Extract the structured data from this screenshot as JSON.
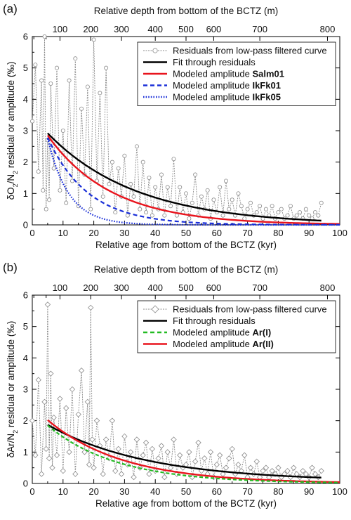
{
  "chart_data": [
    {
      "panel_label": "(a)",
      "type": "line",
      "xlabel": "Relative age from bottom of the BCTZ (kyr)",
      "xlim": [
        0,
        100
      ],
      "xticks": [
        "0",
        "10",
        "20",
        "30",
        "40",
        "50",
        "60",
        "70",
        "80",
        "90",
        "100"
      ],
      "top_axis_label": "Relative depth from bottom of the BCTZ  (m)",
      "top_ticks": [
        {
          "label": "100",
          "x": 9
        },
        {
          "label": "200",
          "x": 19
        },
        {
          "label": "300",
          "x": 29
        },
        {
          "label": "400",
          "x": 40
        },
        {
          "label": "500",
          "x": 50
        },
        {
          "label": "600",
          "x": 59
        },
        {
          "label": "700",
          "x": 74
        },
        {
          "label": "800",
          "x": 96
        }
      ],
      "ylabel": "δO2/N2 residual or amplitude (‰)",
      "ylim": [
        0,
        6
      ],
      "yticks": [
        "0",
        "1",
        "2",
        "3",
        "4",
        "5",
        "6"
      ],
      "legend": {
        "placement": "top-right",
        "entries": [
          {
            "label": "Residuals from low-pass filtered curve",
            "bold": "",
            "style": "residual",
            "color": "#888888"
          },
          {
            "label": "Fit through residuals",
            "bold": "",
            "style": "solid",
            "color": "#000000"
          },
          {
            "label": "Modeled amplitude ",
            "bold": "Salm01",
            "style": "solid",
            "color": "#e8141d"
          },
          {
            "label": "Modeled amplitude ",
            "bold": "IkFk01",
            "style": "dashed",
            "color": "#1a2fd8"
          },
          {
            "label": "Modeled amplitude ",
            "bold": "IkFk05",
            "style": "dotted",
            "color": "#1a2fd8"
          }
        ]
      },
      "residual_marker": "circle",
      "residuals": {
        "x": [
          0,
          1,
          2,
          3,
          3.5,
          4,
          4.5,
          5,
          5.5,
          6,
          7,
          8,
          9,
          10,
          11,
          12,
          13,
          14,
          15,
          16,
          17,
          18,
          19,
          20,
          21,
          22,
          23,
          24,
          25,
          26,
          27,
          28,
          29,
          30,
          31,
          32,
          33,
          34,
          35,
          36,
          37,
          38,
          39,
          40,
          41,
          42,
          43,
          44,
          45,
          46,
          47,
          48,
          49,
          50,
          51,
          52,
          53,
          54,
          55,
          56,
          57,
          58,
          59,
          60,
          61,
          62,
          63,
          64,
          65,
          66,
          67,
          68,
          69,
          70,
          71,
          72,
          73,
          74,
          75,
          76,
          77,
          78,
          79,
          80,
          81,
          82,
          83,
          84,
          85,
          86,
          87,
          88,
          89,
          90,
          91,
          92,
          93,
          94
        ],
        "y": [
          3.3,
          5.1,
          1.7,
          4.6,
          1.1,
          6.0,
          0.5,
          2.7,
          0.8,
          4.5,
          1.8,
          5.0,
          1.1,
          3.0,
          0.7,
          4.6,
          1.4,
          5.3,
          0.6,
          3.7,
          1.6,
          4.4,
          0.5,
          5.9,
          1.4,
          4.2,
          0.9,
          5.0,
          1.3,
          2.0,
          0.4,
          1.8,
          0.9,
          2.2,
          0.3,
          1.3,
          0.9,
          2.5,
          0.5,
          2.0,
          0.4,
          1.5,
          0.3,
          1.2,
          0.5,
          1.6,
          0.3,
          1.2,
          0.6,
          2.1,
          0.3,
          1.2,
          0.4,
          1.0,
          0.2,
          0.7,
          1.6,
          0.3,
          0.9,
          0.5,
          1.1,
          0.2,
          0.8,
          0.4,
          1.2,
          0.3,
          1.4,
          0.5,
          0.8,
          0.3,
          1.0,
          0.6,
          0.2,
          0.5,
          0.7,
          0.3,
          0.4,
          0.6,
          0.2,
          0.5,
          0.3,
          0.6,
          0.2,
          0.4,
          0.5,
          0.2,
          0.3,
          0.6,
          0.2,
          0.3,
          0.4,
          0.2,
          0.5,
          0.3,
          0.2,
          0.4,
          0.3,
          0.7
        ]
      },
      "lines": [
        {
          "name": "Fit through residuals",
          "color": "#000000",
          "dash": "",
          "width": 2.4,
          "x0": 5,
          "x1": 94,
          "A": 2.92,
          "tau": 28.9,
          "floor": 0
        },
        {
          "name": "Salm01",
          "color": "#e8141d",
          "dash": "",
          "width": 2.4,
          "x0": 5,
          "x1": 100,
          "A": 2.85,
          "tau": 20.8,
          "floor": 0
        },
        {
          "name": "IkFk01",
          "color": "#1a2fd8",
          "dash": "6,4",
          "width": 2.2,
          "x0": 5,
          "x1": 100,
          "A": 2.78,
          "tau": 13.1,
          "floor": 0
        },
        {
          "name": "IkFk05",
          "color": "#1a2fd8",
          "dash": "1.6,2",
          "width": 2.2,
          "x0": 5,
          "x1": 100,
          "A": 2.75,
          "tau": 6.8,
          "floor": 0
        }
      ]
    },
    {
      "panel_label": "(b)",
      "type": "line",
      "xlabel": "Relative age from bottom of the BCTZ (kyr)",
      "xlim": [
        0,
        100
      ],
      "xticks": [
        "0",
        "10",
        "20",
        "30",
        "40",
        "50",
        "60",
        "70",
        "80",
        "90",
        "100"
      ],
      "top_axis_label": "Relative depth from bottom of the BCTZ  (m)",
      "top_ticks": [
        {
          "label": "100",
          "x": 9
        },
        {
          "label": "200",
          "x": 19
        },
        {
          "label": "300",
          "x": 29
        },
        {
          "label": "400",
          "x": 40
        },
        {
          "label": "500",
          "x": 50
        },
        {
          "label": "600",
          "x": 59
        },
        {
          "label": "700",
          "x": 74
        },
        {
          "label": "800",
          "x": 96
        }
      ],
      "ylabel": "δAr/N2 residual or amplitude (‰)",
      "ylim": [
        0,
        6
      ],
      "yticks": [
        "0",
        "1",
        "2",
        "3",
        "4",
        "5",
        "6"
      ],
      "legend": {
        "placement": "top-right",
        "entries": [
          {
            "label": "Residuals from low-pass filtered curve",
            "bold": "",
            "style": "residual",
            "color": "#888888"
          },
          {
            "label": "Fit through residuals",
            "bold": "",
            "style": "solid",
            "color": "#000000"
          },
          {
            "label": "Modeled amplitude ",
            "bold": "Ar(I)",
            "style": "dashed",
            "color": "#22bb22"
          },
          {
            "label": "Modeled amplitude ",
            "bold": "Ar(II)",
            "style": "solid",
            "color": "#e8141d"
          }
        ]
      },
      "residual_marker": "diamond",
      "residuals": {
        "x": [
          0,
          1,
          2,
          3,
          4,
          4.5,
          5,
          5.5,
          6,
          6.5,
          7,
          8,
          9,
          10,
          11,
          12,
          13,
          14,
          15,
          16,
          17,
          18,
          18.5,
          19,
          19.5,
          20,
          21,
          22,
          23,
          24,
          25,
          26,
          27,
          28,
          29,
          30,
          31,
          32,
          33,
          34,
          35,
          36,
          37,
          38,
          39,
          40,
          41,
          42,
          43,
          44,
          45,
          46,
          47,
          48,
          49,
          50,
          51,
          52,
          53,
          54,
          55,
          56,
          57,
          58,
          59,
          60,
          61,
          62,
          63,
          64,
          65,
          66,
          67,
          68,
          69,
          70,
          71,
          72,
          73,
          74,
          75,
          76,
          77,
          78,
          79,
          80,
          81,
          82,
          83,
          84,
          85,
          86,
          87,
          88,
          89,
          90,
          91,
          92,
          93,
          94
        ],
        "y": [
          2.0,
          0.9,
          3.3,
          0.3,
          2.6,
          1.1,
          5.7,
          0.8,
          3.5,
          0.5,
          2.1,
          0.9,
          2.7,
          0.4,
          2.4,
          1.0,
          3.0,
          0.3,
          2.2,
          3.6,
          1.0,
          2.6,
          0.6,
          5.6,
          1.4,
          0.5,
          2.0,
          1.2,
          0.3,
          1.4,
          0.8,
          2.0,
          0.4,
          1.1,
          0.3,
          1.5,
          0.6,
          1.0,
          0.2,
          1.4,
          0.5,
          0.9,
          1.3,
          0.3,
          1.1,
          0.4,
          0.8,
          1.2,
          0.2,
          1.0,
          0.5,
          1.4,
          0.3,
          0.9,
          0.5,
          0.6,
          1.0,
          0.2,
          0.7,
          1.3,
          0.4,
          0.8,
          0.3,
          1.0,
          0.2,
          0.6,
          0.9,
          0.3,
          0.5,
          0.8,
          1.1,
          0.3,
          0.6,
          0.4,
          0.9,
          0.2,
          0.5,
          0.3,
          0.7,
          0.2,
          0.4,
          0.5,
          0.2,
          0.4,
          0.3,
          0.5,
          0.2,
          0.3,
          0.4,
          0.2,
          0.5,
          0.3,
          0.2,
          0.4,
          0.3,
          0.2,
          0.5,
          0.3,
          0.2,
          0.4
        ]
      },
      "lines": [
        {
          "name": "Fit through residuals",
          "color": "#000000",
          "dash": "",
          "width": 2.4,
          "x0": 5,
          "x1": 94,
          "A": 1.8,
          "tau": 32.5,
          "floor": 0.07
        },
        {
          "name": "Ar(II)",
          "color": "#e8141d",
          "dash": "",
          "width": 2.4,
          "x0": 5,
          "x1": 100,
          "A": 2.02,
          "tau": 24.5,
          "floor": 0
        },
        {
          "name": "Ar(I)",
          "color": "#22bb22",
          "dash": "5,3",
          "width": 2.2,
          "x0": 5,
          "x1": 100,
          "A": 1.85,
          "tau": 22.5,
          "floor": 0
        }
      ]
    }
  ]
}
